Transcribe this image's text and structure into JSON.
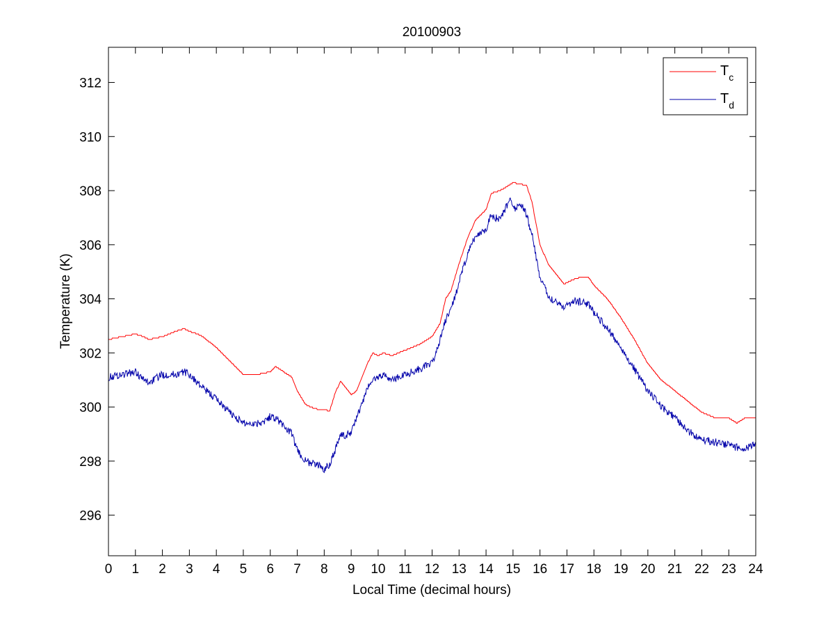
{
  "chart_data": {
    "type": "line",
    "title": "20100903",
    "xlabel": "Local Time (decimal hours)",
    "ylabel": "Temperature (K)",
    "xlim": [
      0,
      24
    ],
    "ylim": [
      294.5,
      313.3
    ],
    "xticks": [
      0,
      1,
      2,
      3,
      4,
      5,
      6,
      7,
      8,
      9,
      10,
      11,
      12,
      13,
      14,
      15,
      16,
      17,
      18,
      19,
      20,
      21,
      22,
      23,
      24
    ],
    "yticks": [
      296,
      298,
      300,
      302,
      304,
      306,
      308,
      310,
      312
    ],
    "grid": false,
    "legend_position": "top-right",
    "series": [
      {
        "name_main": "T",
        "name_sub": "c",
        "color": "#ff0000",
        "x": [
          0,
          0.5,
          1,
          1.3,
          1.5,
          2,
          2.5,
          2.8,
          3,
          3.3,
          3.5,
          4,
          4.5,
          5,
          5.5,
          6,
          6.2,
          6.5,
          6.8,
          7,
          7.3,
          7.5,
          7.8,
          8,
          8.2,
          8.4,
          8.6,
          8.8,
          9,
          9.2,
          9.4,
          9.6,
          9.8,
          10,
          10.2,
          10.5,
          11,
          11.5,
          12,
          12.3,
          12.5,
          12.7,
          13,
          13.3,
          13.6,
          14,
          14.2,
          14.5,
          14.7,
          15,
          15.2,
          15.5,
          15.7,
          16,
          16.3,
          16.6,
          16.9,
          17.2,
          17.5,
          17.8,
          18,
          18.5,
          19,
          19.5,
          20,
          20.5,
          21,
          21.5,
          22,
          22.5,
          23,
          23.3,
          23.6,
          24
        ],
        "y": [
          302.5,
          302.6,
          302.7,
          302.6,
          302.5,
          302.6,
          302.8,
          302.9,
          302.8,
          302.7,
          302.6,
          302.2,
          301.7,
          301.2,
          301.2,
          301.3,
          301.5,
          301.3,
          301.1,
          300.6,
          300.1,
          300.0,
          299.9,
          299.9,
          299.85,
          300.5,
          300.95,
          300.7,
          300.45,
          300.6,
          301.1,
          301.6,
          302.0,
          301.9,
          302.0,
          301.9,
          302.1,
          302.3,
          302.6,
          303.1,
          304.0,
          304.3,
          305.3,
          306.2,
          306.9,
          307.3,
          307.9,
          308.0,
          308.1,
          308.3,
          308.25,
          308.2,
          307.6,
          306.0,
          305.3,
          304.9,
          304.55,
          304.7,
          304.8,
          304.8,
          304.5,
          304.0,
          303.3,
          302.5,
          301.6,
          301.0,
          300.6,
          300.2,
          299.8,
          299.6,
          299.6,
          299.4,
          299.6,
          299.6
        ]
      },
      {
        "name_main": "T",
        "name_sub": "d",
        "color": "#0000aa",
        "x": [
          0,
          0.5,
          1,
          1.3,
          1.5,
          2,
          2.5,
          2.8,
          3,
          3.3,
          3.5,
          4,
          4.5,
          5,
          5.5,
          5.8,
          6,
          6.2,
          6.5,
          6.8,
          7,
          7.3,
          7.6,
          7.9,
          8,
          8.2,
          8.4,
          8.6,
          8.8,
          9,
          9.2,
          9.4,
          9.6,
          9.8,
          10,
          10.2,
          10.5,
          11,
          11.5,
          12,
          12.3,
          12.5,
          12.7,
          13,
          13.3,
          13.6,
          14,
          14.2,
          14.5,
          14.7,
          14.9,
          15.1,
          15.3,
          15.5,
          15.7,
          16,
          16.3,
          16.6,
          16.9,
          17.2,
          17.5,
          17.8,
          18,
          18.5,
          19,
          19.5,
          20,
          20.5,
          21,
          21.5,
          22,
          22.5,
          23,
          23.3,
          23.6,
          24
        ],
        "y": [
          301.1,
          301.2,
          301.3,
          301.0,
          300.9,
          301.2,
          301.2,
          301.3,
          301.2,
          300.9,
          300.7,
          300.3,
          299.8,
          299.4,
          299.4,
          299.5,
          299.65,
          299.6,
          299.3,
          299.0,
          298.4,
          298.0,
          297.9,
          297.8,
          297.7,
          297.9,
          298.4,
          299.0,
          298.9,
          299.1,
          299.6,
          300.1,
          300.7,
          301.0,
          301.1,
          301.2,
          301.0,
          301.2,
          301.4,
          301.6,
          302.5,
          303.2,
          303.6,
          304.6,
          305.6,
          306.3,
          306.6,
          307.1,
          306.9,
          307.3,
          307.7,
          307.3,
          307.5,
          307.1,
          306.4,
          304.8,
          304.1,
          303.9,
          303.7,
          303.9,
          303.9,
          303.8,
          303.5,
          302.9,
          302.2,
          301.4,
          300.6,
          300.0,
          299.6,
          299.1,
          298.8,
          298.7,
          298.6,
          298.5,
          298.5,
          298.6
        ]
      }
    ]
  }
}
